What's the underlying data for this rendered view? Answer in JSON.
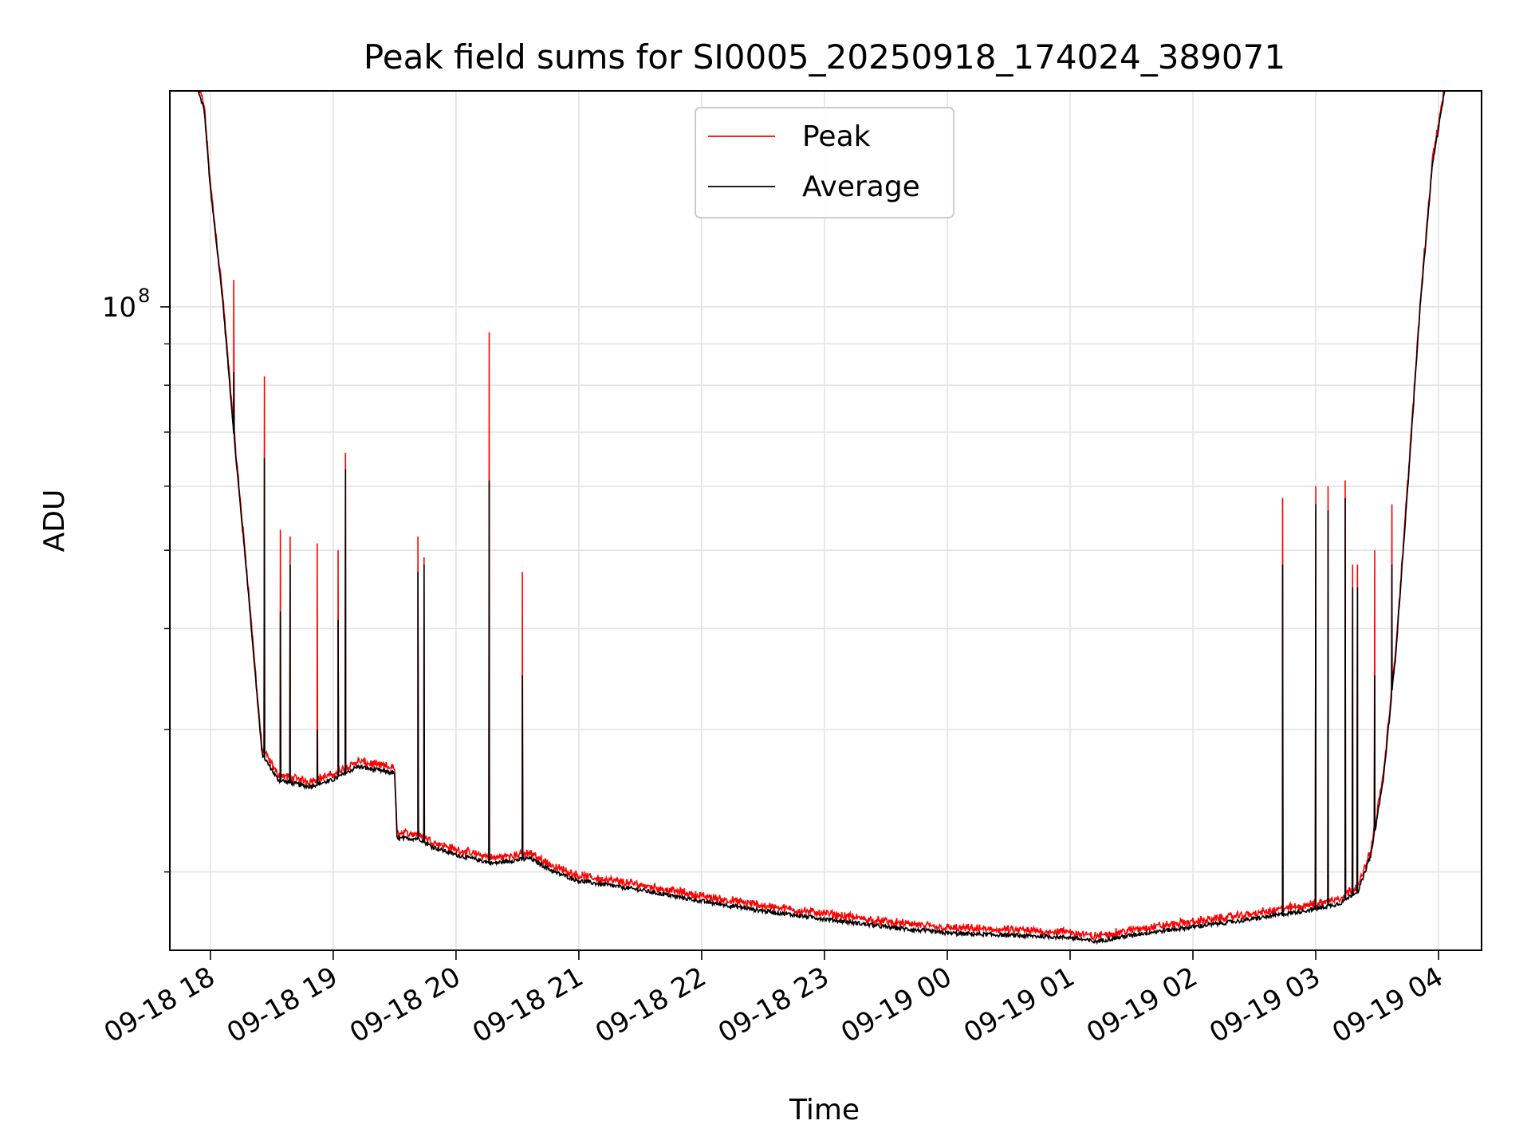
{
  "chart_data": {
    "type": "line",
    "title": "Peak field sums for SI0005_20250918_174024_389071",
    "xlabel": "Time",
    "ylabel": "ADU",
    "yscale": "log",
    "ylim": [
      16000000,
      185000000
    ],
    "xlim": [
      17.67,
      28.35
    ],
    "grid": true,
    "legend": {
      "position": "top-center",
      "entries": [
        "Peak",
        "Average"
      ]
    },
    "colors": {
      "Peak": "#ff0000",
      "Average": "#000000"
    },
    "x_ticks": [
      {
        "value": 18,
        "label": "09-18 18"
      },
      {
        "value": 19,
        "label": "09-18 19"
      },
      {
        "value": 20,
        "label": "09-18 20"
      },
      {
        "value": 21,
        "label": "09-18 21"
      },
      {
        "value": 22,
        "label": "09-18 22"
      },
      {
        "value": 23,
        "label": "09-18 23"
      },
      {
        "value": 24,
        "label": "09-19 00"
      },
      {
        "value": 25,
        "label": "09-19 01"
      },
      {
        "value": 26,
        "label": "09-19 02"
      },
      {
        "value": 27,
        "label": "09-19 03"
      },
      {
        "value": 28,
        "label": "09-19 04"
      }
    ],
    "y_major_ticks": [
      {
        "value": 100000000,
        "base": "10",
        "exp": "8"
      }
    ],
    "y_minor_ticks": [
      20000000,
      30000000,
      40000000,
      50000000,
      60000000,
      70000000,
      80000000,
      90000000,
      200000000
    ],
    "baseline_average": {
      "x": [
        17.67,
        17.9,
        17.95,
        18.0,
        18.1,
        18.2,
        18.3,
        18.42,
        18.55,
        18.8,
        19.0,
        19.2,
        19.5,
        19.52,
        19.7,
        19.8,
        20.0,
        20.3,
        20.6,
        20.8,
        21.0,
        21.5,
        22.0,
        22.5,
        23.0,
        23.5,
        24.0,
        24.5,
        25.0,
        25.2,
        25.6,
        26.0,
        26.5,
        26.8,
        27.0,
        27.2,
        27.35,
        27.45,
        27.55,
        27.65,
        27.75,
        27.85,
        27.95,
        28.05,
        28.35
      ],
      "values": [
        185000000,
        185000000,
        175000000,
        140000000,
        102000000,
        67000000,
        46000000,
        28000000,
        26000000,
        25500000,
        26000000,
        27000000,
        26500000,
        22000000,
        22000000,
        21500000,
        21000000,
        20500000,
        20800000,
        20000000,
        19500000,
        19000000,
        18400000,
        17900000,
        17500000,
        17100000,
        16800000,
        16700000,
        16600000,
        16400000,
        16800000,
        17100000,
        17500000,
        17800000,
        18000000,
        18300000,
        19000000,
        21000000,
        26000000,
        37000000,
        60000000,
        100000000,
        150000000,
        185000000,
        185000000
      ]
    },
    "spikes": [
      {
        "x": 18.19,
        "peak": 108000000,
        "average": 83000000
      },
      {
        "x": 18.44,
        "peak": 82000000,
        "average": 65000000
      },
      {
        "x": 18.57,
        "peak": 53000000,
        "average": 42000000
      },
      {
        "x": 18.65,
        "peak": 52000000,
        "average": 48000000
      },
      {
        "x": 18.87,
        "peak": 51000000,
        "average": 30000000
      },
      {
        "x": 19.04,
        "peak": 50000000,
        "average": 41000000
      },
      {
        "x": 19.1,
        "peak": 66000000,
        "average": 63000000
      },
      {
        "x": 19.69,
        "peak": 52000000,
        "average": 47000000
      },
      {
        "x": 19.74,
        "peak": 49000000,
        "average": 48000000
      },
      {
        "x": 20.27,
        "peak": 93000000,
        "average": 61000000
      },
      {
        "x": 20.54,
        "peak": 47000000,
        "average": 35000000
      },
      {
        "x": 26.73,
        "peak": 58000000,
        "average": 48000000
      },
      {
        "x": 27.0,
        "peak": 60000000,
        "average": 57000000
      },
      {
        "x": 27.1,
        "peak": 60000000,
        "average": 56000000
      },
      {
        "x": 27.24,
        "peak": 61000000,
        "average": 58000000
      },
      {
        "x": 27.3,
        "peak": 48000000,
        "average": 45000000
      },
      {
        "x": 27.34,
        "peak": 48000000,
        "average": 45000000
      },
      {
        "x": 27.48,
        "peak": 50000000,
        "average": 35000000
      },
      {
        "x": 27.62,
        "peak": 57000000,
        "average": 48000000
      }
    ]
  }
}
